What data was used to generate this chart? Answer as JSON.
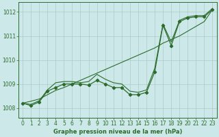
{
  "x": [
    0,
    1,
    2,
    3,
    4,
    5,
    6,
    7,
    8,
    9,
    10,
    11,
    12,
    13,
    14,
    15,
    16,
    17,
    18,
    19,
    20,
    21,
    22,
    23
  ],
  "y_main": [
    1008.2,
    1008.1,
    1008.25,
    1008.7,
    1008.85,
    1009.0,
    1009.0,
    1009.0,
    1008.95,
    1009.15,
    1009.0,
    1008.85,
    1008.85,
    1008.55,
    1008.55,
    1008.65,
    1009.5,
    1011.45,
    1010.6,
    1011.6,
    1011.75,
    1011.8,
    1011.8,
    1012.1
  ],
  "y_line2": [
    1008.2,
    1008.15,
    1008.3,
    1008.75,
    1009.05,
    1009.1,
    1009.1,
    1009.05,
    1009.1,
    1009.4,
    1009.2,
    1009.05,
    1009.0,
    1008.7,
    1008.65,
    1008.75,
    1009.65,
    1011.5,
    1010.75,
    1011.65,
    1011.8,
    1011.85,
    1011.85,
    1012.15
  ],
  "y_trend": [
    1008.2,
    1008.28,
    1008.37,
    1008.55,
    1008.73,
    1008.85,
    1009.0,
    1009.15,
    1009.3,
    1009.45,
    1009.6,
    1009.75,
    1009.9,
    1010.05,
    1010.2,
    1010.35,
    1010.5,
    1010.7,
    1010.85,
    1011.0,
    1011.2,
    1011.4,
    1011.6,
    1012.1
  ],
  "line_color": "#2d6b2d",
  "bg_color": "#cce8e8",
  "grid_color": "#aacccc",
  "xlabel": "Graphe pression niveau de la mer (hPa)",
  "ylim": [
    1007.6,
    1012.4
  ],
  "yticks": [
    1008,
    1009,
    1010,
    1011,
    1012
  ],
  "xticks": [
    0,
    1,
    2,
    3,
    4,
    5,
    6,
    7,
    8,
    9,
    10,
    11,
    12,
    13,
    14,
    15,
    16,
    17,
    18,
    19,
    20,
    21,
    22,
    23
  ],
  "tick_fontsize": 5.5,
  "xlabel_fontsize": 6.0
}
